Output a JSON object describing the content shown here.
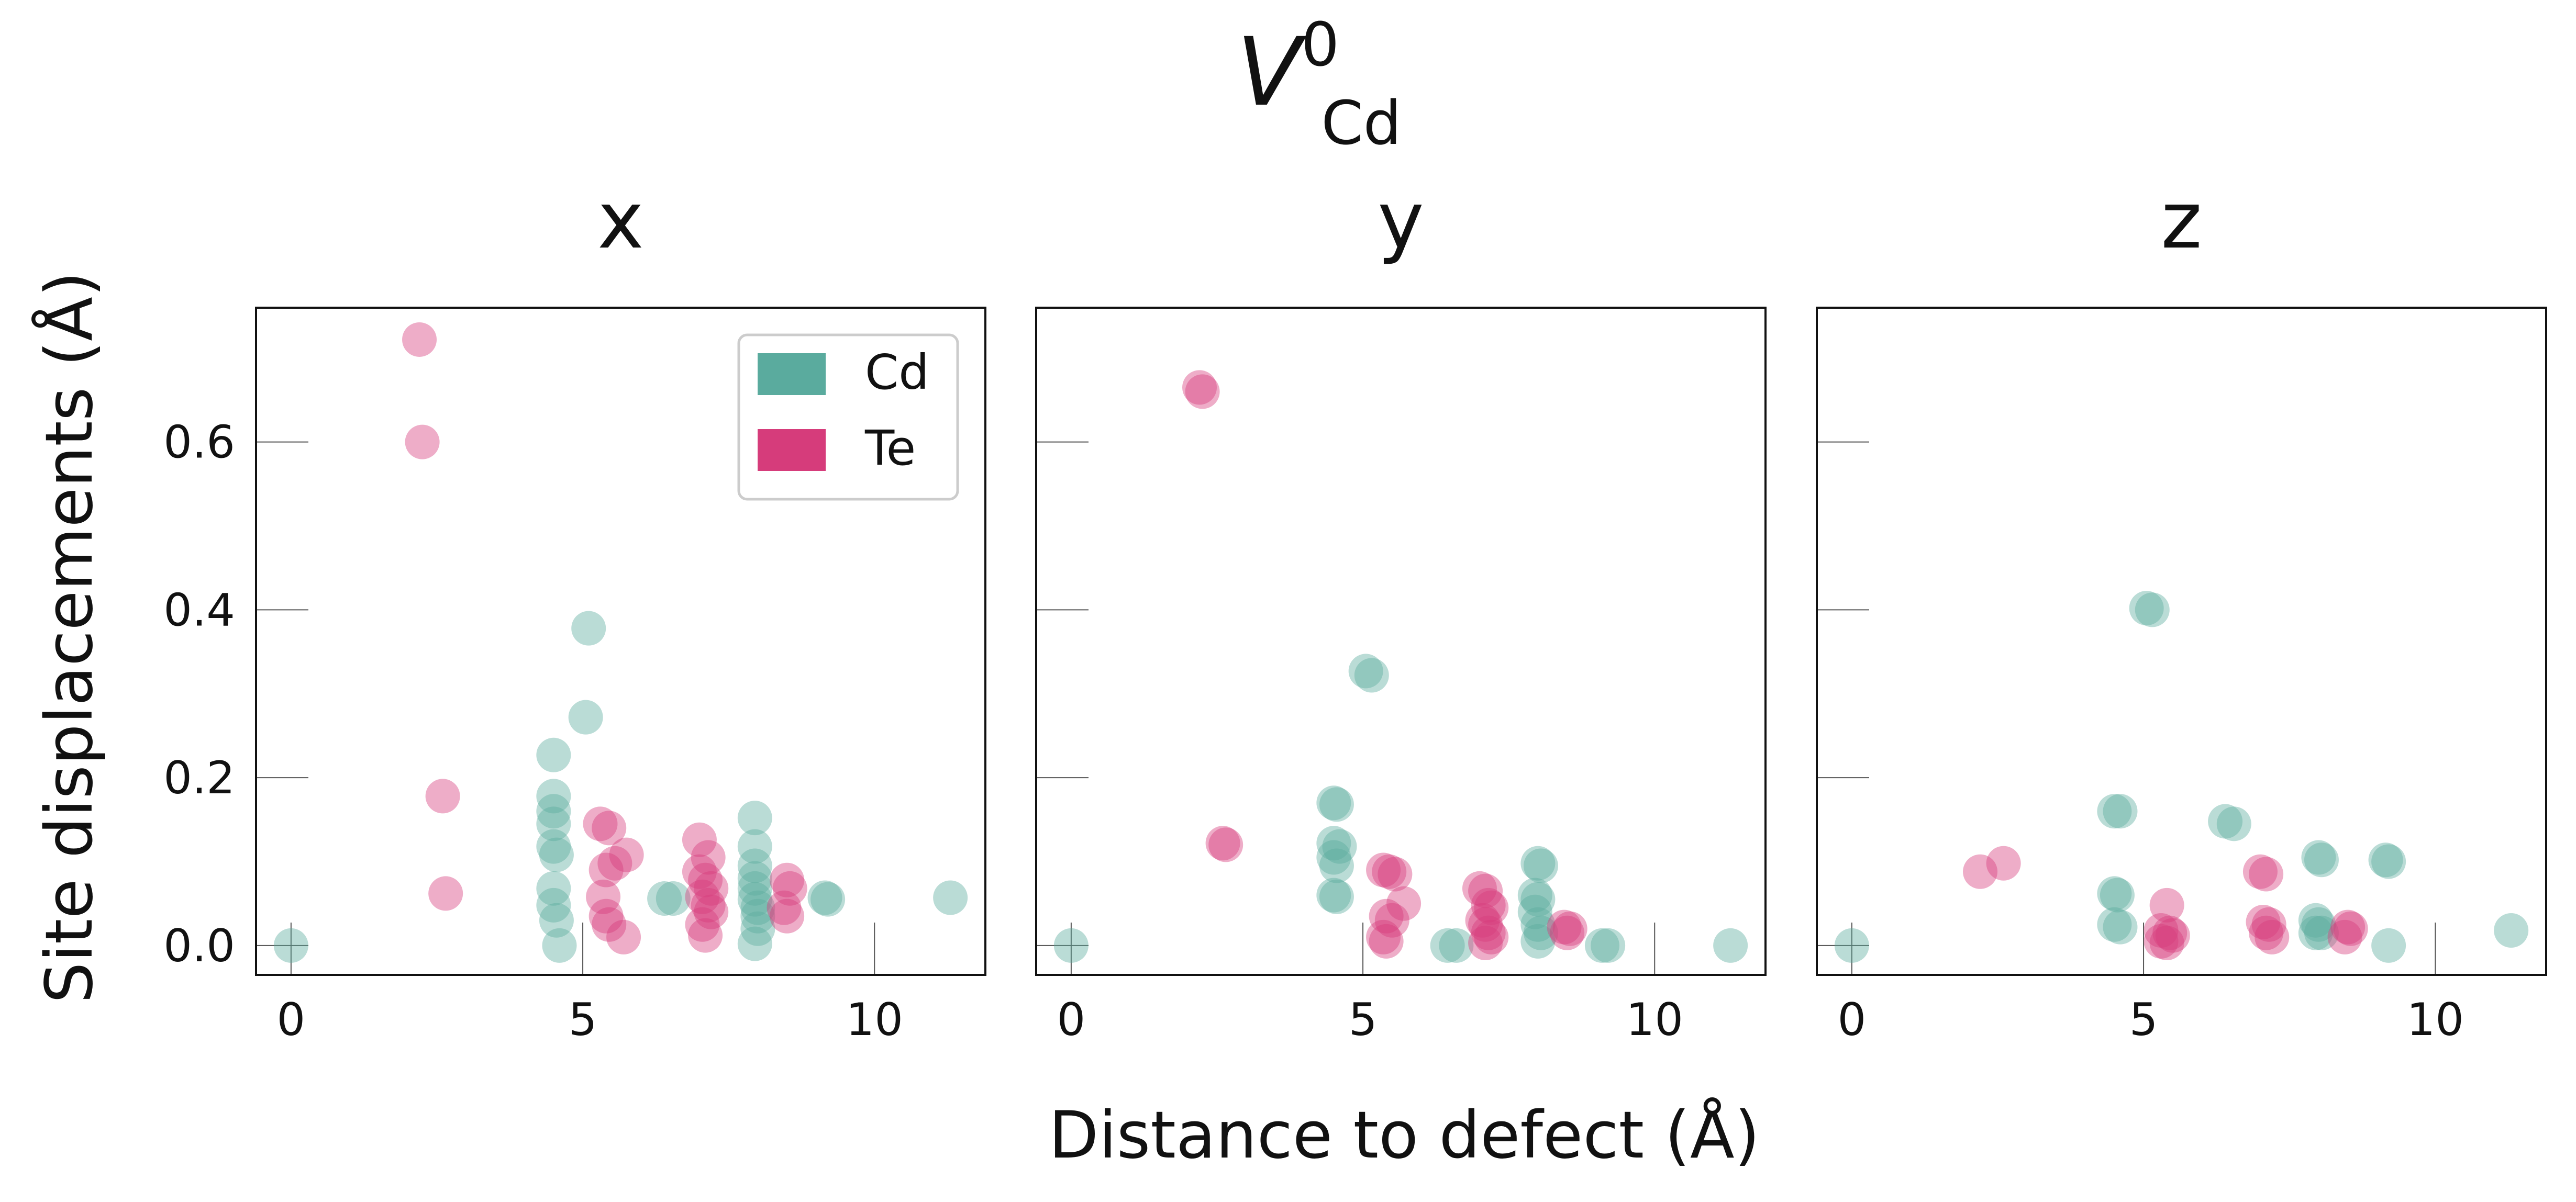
{
  "chart_data": {
    "type": "scatter",
    "suptitle": {
      "base": "V",
      "sup": "0",
      "sub": "Cd"
    },
    "xlabel": "Distance to defect (Å)",
    "ylabel": "Site displacements (Å)",
    "xlim": [
      -0.6,
      11.9
    ],
    "ylim": [
      -0.035,
      0.76
    ],
    "xticks": [
      0,
      5,
      10
    ],
    "yticks": [
      0.0,
      0.2,
      0.4,
      0.6
    ],
    "ytick_labels": [
      "0.0",
      "0.2",
      "0.4",
      "0.6"
    ],
    "grid": false,
    "legend": {
      "placement": "upper right",
      "panel": 0,
      "entries": [
        {
          "label": "Cd",
          "color": "#5aab9e"
        },
        {
          "label": "Te",
          "color": "#d63c7b"
        }
      ]
    },
    "colors": {
      "Cd": "#5aab9e",
      "Te": "#d63c7b"
    },
    "panels": [
      {
        "title": "x",
        "series": [
          {
            "name": "Cd",
            "points": [
              [
                0,
                0.0
              ],
              [
                4.5,
                0.227
              ],
              [
                4.5,
                0.178
              ],
              [
                4.5,
                0.16
              ],
              [
                4.5,
                0.145
              ],
              [
                4.5,
                0.118
              ],
              [
                4.55,
                0.108
              ],
              [
                4.5,
                0.068
              ],
              [
                4.5,
                0.048
              ],
              [
                4.55,
                0.03
              ],
              [
                4.6,
                0.0
              ],
              [
                5.05,
                0.272
              ],
              [
                5.1,
                0.378
              ],
              [
                6.4,
                0.056
              ],
              [
                6.55,
                0.056
              ],
              [
                7.95,
                0.152
              ],
              [
                7.95,
                0.118
              ],
              [
                7.95,
                0.095
              ],
              [
                7.95,
                0.08
              ],
              [
                7.95,
                0.068
              ],
              [
                7.95,
                0.055
              ],
              [
                8.0,
                0.045
              ],
              [
                8.0,
                0.035
              ],
              [
                8.0,
                0.02
              ],
              [
                7.95,
                0.002
              ],
              [
                9.15,
                0.057
              ],
              [
                9.2,
                0.055
              ],
              [
                11.3,
                0.057
              ]
            ]
          },
          {
            "name": "Te",
            "points": [
              [
                2.2,
                0.722
              ],
              [
                2.25,
                0.6
              ],
              [
                2.6,
                0.178
              ],
              [
                2.65,
                0.062
              ],
              [
                5.3,
                0.145
              ],
              [
                5.45,
                0.14
              ],
              [
                5.4,
                0.09
              ],
              [
                5.55,
                0.098
              ],
              [
                5.75,
                0.108
              ],
              [
                5.35,
                0.058
              ],
              [
                5.4,
                0.035
              ],
              [
                5.45,
                0.025
              ],
              [
                5.7,
                0.01
              ],
              [
                7.0,
                0.126
              ],
              [
                7.15,
                0.105
              ],
              [
                7.0,
                0.088
              ],
              [
                7.1,
                0.078
              ],
              [
                7.2,
                0.068
              ],
              [
                7.05,
                0.058
              ],
              [
                7.15,
                0.048
              ],
              [
                7.2,
                0.04
              ],
              [
                7.05,
                0.025
              ],
              [
                7.1,
                0.012
              ],
              [
                8.5,
                0.078
              ],
              [
                8.55,
                0.068
              ],
              [
                8.45,
                0.045
              ],
              [
                8.5,
                0.035
              ]
            ]
          }
        ]
      },
      {
        "title": "y",
        "series": [
          {
            "name": "Cd",
            "points": [
              [
                0,
                0.0
              ],
              [
                4.5,
                0.17
              ],
              [
                4.55,
                0.168
              ],
              [
                4.5,
                0.122
              ],
              [
                4.6,
                0.118
              ],
              [
                4.5,
                0.105
              ],
              [
                4.55,
                0.095
              ],
              [
                4.5,
                0.06
              ],
              [
                4.55,
                0.058
              ],
              [
                5.05,
                0.327
              ],
              [
                5.15,
                0.322
              ],
              [
                6.45,
                0.0
              ],
              [
                6.6,
                0.0
              ],
              [
                8.0,
                0.098
              ],
              [
                8.05,
                0.095
              ],
              [
                7.95,
                0.06
              ],
              [
                8.0,
                0.055
              ],
              [
                7.95,
                0.04
              ],
              [
                8.0,
                0.025
              ],
              [
                8.05,
                0.015
              ],
              [
                8.0,
                0.005
              ],
              [
                9.1,
                0.0
              ],
              [
                9.2,
                0.0
              ],
              [
                11.3,
                0.0
              ]
            ]
          },
          {
            "name": "Te",
            "points": [
              [
                2.2,
                0.665
              ],
              [
                2.25,
                0.66
              ],
              [
                2.6,
                0.122
              ],
              [
                2.65,
                0.12
              ],
              [
                5.35,
                0.09
              ],
              [
                5.45,
                0.088
              ],
              [
                5.55,
                0.085
              ],
              [
                5.7,
                0.05
              ],
              [
                5.4,
                0.035
              ],
              [
                5.5,
                0.03
              ],
              [
                5.35,
                0.01
              ],
              [
                5.4,
                0.005
              ],
              [
                7.0,
                0.068
              ],
              [
                7.1,
                0.065
              ],
              [
                7.15,
                0.048
              ],
              [
                7.2,
                0.045
              ],
              [
                7.05,
                0.03
              ],
              [
                7.1,
                0.025
              ],
              [
                7.15,
                0.015
              ],
              [
                7.2,
                0.01
              ],
              [
                7.1,
                0.003
              ],
              [
                8.45,
                0.022
              ],
              [
                8.55,
                0.02
              ],
              [
                8.5,
                0.015
              ]
            ]
          }
        ]
      },
      {
        "title": "z",
        "series": [
          {
            "name": "Cd",
            "points": [
              [
                0,
                0.0
              ],
              [
                4.5,
                0.16
              ],
              [
                4.6,
                0.16
              ],
              [
                4.5,
                0.062
              ],
              [
                4.55,
                0.06
              ],
              [
                4.5,
                0.025
              ],
              [
                4.6,
                0.022
              ],
              [
                5.05,
                0.402
              ],
              [
                5.15,
                0.4
              ],
              [
                6.4,
                0.148
              ],
              [
                6.55,
                0.145
              ],
              [
                8.0,
                0.105
              ],
              [
                8.05,
                0.102
              ],
              [
                7.95,
                0.03
              ],
              [
                8.0,
                0.025
              ],
              [
                7.95,
                0.015
              ],
              [
                8.05,
                0.015
              ],
              [
                9.15,
                0.102
              ],
              [
                9.2,
                0.1
              ],
              [
                9.2,
                0.0
              ],
              [
                11.3,
                0.018
              ]
            ]
          },
          {
            "name": "Te",
            "points": [
              [
                2.2,
                0.088
              ],
              [
                2.6,
                0.098
              ],
              [
                5.4,
                0.048
              ],
              [
                5.3,
                0.018
              ],
              [
                5.45,
                0.015
              ],
              [
                5.5,
                0.012
              ],
              [
                5.3,
                0.005
              ],
              [
                5.4,
                0.003
              ],
              [
                7.0,
                0.088
              ],
              [
                7.1,
                0.085
              ],
              [
                7.05,
                0.028
              ],
              [
                7.15,
                0.025
              ],
              [
                7.1,
                0.015
              ],
              [
                7.2,
                0.01
              ],
              [
                8.5,
                0.022
              ],
              [
                8.55,
                0.02
              ],
              [
                8.45,
                0.01
              ]
            ]
          }
        ]
      }
    ]
  }
}
